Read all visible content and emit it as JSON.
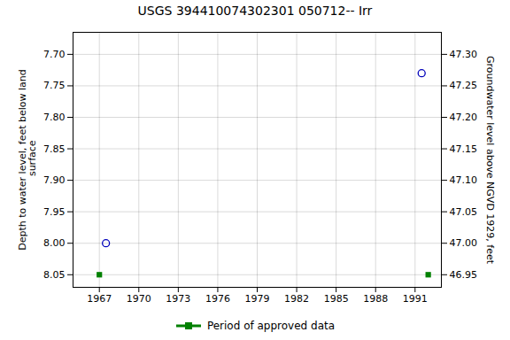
{
  "chart_data": {
    "type": "scatter",
    "title": "USGS 394410074302301 050712-- Irr",
    "ylabel": "Depth to water level, feet below land\n surface",
    "y2label": "Groundwater level above NGVD 1929, feet",
    "xlim": [
      1965.0,
      1993.0
    ],
    "xticks": [
      1967,
      1970,
      1973,
      1976,
      1979,
      1982,
      1985,
      1988,
      1991
    ],
    "ylim": [
      8.07,
      7.665
    ],
    "yticks": [
      {
        "value": 7.7,
        "label": "7.70"
      },
      {
        "value": 7.75,
        "label": "7.75"
      },
      {
        "value": 7.8,
        "label": "7.80"
      },
      {
        "value": 7.85,
        "label": "7.85"
      },
      {
        "value": 7.9,
        "label": "7.90"
      },
      {
        "value": 7.95,
        "label": "7.95"
      },
      {
        "value": 8.0,
        "label": "8.00"
      },
      {
        "value": 8.05,
        "label": "8.05"
      }
    ],
    "y2lim": [
      46.93,
      47.335
    ],
    "y2ticks": [
      {
        "value": 47.3,
        "label": "47.30"
      },
      {
        "value": 47.25,
        "label": "47.25"
      },
      {
        "value": 47.2,
        "label": "47.20"
      },
      {
        "value": 47.15,
        "label": "47.15"
      },
      {
        "value": 47.1,
        "label": "47.10"
      },
      {
        "value": 47.05,
        "label": "47.05"
      },
      {
        "value": 47.0,
        "label": "47.00"
      },
      {
        "value": 46.95,
        "label": "46.95"
      }
    ],
    "grid": true,
    "legend": "bottom",
    "series": [
      {
        "x": [
          1967.5,
          1991.5
        ],
        "values": [
          8.0,
          7.73
        ],
        "color": "#0000bb",
        "marker": "circle"
      },
      {
        "name": "Period of approved data",
        "x": [
          1967.0,
          1992.0
        ],
        "values": [
          8.05,
          8.05
        ],
        "color": "#008000",
        "marker": "square"
      }
    ]
  }
}
